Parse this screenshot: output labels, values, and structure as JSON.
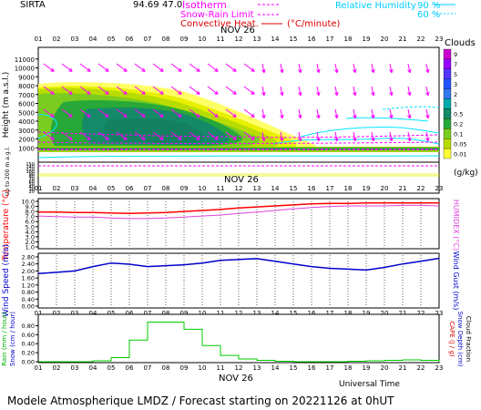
{
  "header": {
    "site": "SIRTA",
    "number": "94.69",
    "coords_partial": "47.0",
    "legend_rh_label": "Relative Humidity",
    "legend_rh_values": [
      "90 %",
      "60 %"
    ],
    "legend_isotherm": "Isotherm",
    "legend_snow_rain": "Snow-Rain Limit",
    "legend_convective": "Convective Heat.",
    "legend_convective_unit": "(°C/minute)"
  },
  "colors": {
    "magenta": "#ff00ff",
    "cyan": "#00e5ff",
    "cloud_light_yellow": "#ffff66",
    "cloud_yellow": "#e8f000",
    "cloud_olive": "#b8dc00",
    "cloud_lightgreen": "#7acc20",
    "cloud_green": "#28a838",
    "cloud_darkgreen": "#148a68",
    "temperature": "#ff0000",
    "humidex": "#dd44dd",
    "wind": "#0000cc",
    "rain": "#00cc00"
  },
  "hours": [
    "01",
    "02",
    "03",
    "04",
    "05",
    "06",
    "07",
    "08",
    "09",
    "10",
    "11",
    "12",
    "13",
    "14",
    "15",
    "16",
    "17",
    "18",
    "19",
    "20",
    "21",
    "22",
    "23"
  ],
  "date_label": "NOV 26",
  "footer": "Modele Atmospherique LMDZ / Forecast starting on 20221126 at 0hUT",
  "universal_time": "Universal Time",
  "chart_data": [
    {
      "type": "heatmap",
      "title": "Clouds",
      "ylabel": "Height (m a.s.l.)",
      "yticks": [
        1000,
        2000,
        3000,
        4000,
        5000,
        6000,
        7000,
        8000,
        9000,
        10000,
        11000
      ],
      "ytick_labels": [
        "1000",
        "2000",
        "3000",
        "4000",
        "5000",
        "6000",
        "7000",
        "8000",
        "9000",
        "10000",
        "11000"
      ],
      "ylim": [
        0,
        12000
      ],
      "low_ylabel": "Up to 200 m a.g.l.",
      "low_yticks": [
        20,
        30,
        40,
        50,
        60,
        70,
        80,
        90,
        100,
        120,
        140,
        150
      ],
      "colorbar_labels": [
        "9",
        "7",
        "5",
        "3",
        "2",
        "1",
        "0.5",
        "0.2",
        "0.1",
        "0.05",
        "0.01"
      ],
      "colorbar_unit": "(g/kg)"
    },
    {
      "type": "line",
      "ylabel": "Temperature (°C)",
      "right_label": "HUMIDEX (°C)",
      "yticks": [
        "1.0",
        "2.0",
        "3.0",
        "4.0",
        "5.0",
        "6.0",
        "7.0",
        "8.0",
        "9.0",
        "10.0"
      ],
      "ylim": [
        1.0,
        10.0
      ],
      "series": [
        {
          "name": "Temperature",
          "values": [
            7.9,
            7.9,
            7.8,
            7.8,
            7.7,
            7.6,
            7.7,
            7.8,
            8.0,
            8.2,
            8.4,
            8.7,
            8.9,
            9.1,
            9.3,
            9.5,
            9.6,
            9.6,
            9.7,
            9.7,
            9.7,
            9.7,
            9.7
          ]
        },
        {
          "name": "Humidex",
          "values": [
            7.1,
            7.0,
            6.9,
            6.9,
            6.7,
            6.6,
            6.6,
            6.7,
            6.9,
            7.1,
            7.3,
            7.6,
            7.9,
            8.2,
            8.5,
            8.8,
            9.0,
            9.1,
            9.1,
            9.1,
            9.2,
            9.2,
            9.1
          ]
        }
      ]
    },
    {
      "type": "line",
      "ylabel": "Wind Speed (m/s)",
      "right_label": "Wind Gust (m/s)",
      "yticks": [
        "0.00",
        "0.20",
        "0.40",
        "0.60",
        "0.80",
        "1.00",
        "1.20",
        "1.40",
        "1.60",
        "1.80",
        "2.00",
        "2.20",
        "2.40",
        "2.60",
        "2.80"
      ],
      "ylim": [
        0,
        2.9
      ],
      "series": [
        {
          "name": "Wind Speed",
          "values": [
            1.85,
            1.92,
            2.0,
            2.25,
            2.45,
            2.38,
            2.25,
            2.3,
            2.35,
            2.45,
            2.6,
            2.65,
            2.7,
            2.55,
            2.4,
            2.25,
            2.15,
            2.1,
            2.05,
            2.2,
            2.4,
            2.55,
            2.72
          ]
        }
      ]
    },
    {
      "type": "bar",
      "ylabel_rain": "Rain (mm / hour)",
      "ylabel_snow": "Snow (cm / hour)",
      "right_labels": [
        "CAPE (J / g)",
        "Snow Depth (cm)",
        "Cloud Fraction"
      ],
      "yticks": [
        "0.00",
        "0.20",
        "0.40",
        "0.60",
        "0.80"
      ],
      "ylim": [
        0,
        0.95
      ],
      "values": [
        0,
        0,
        0,
        0.02,
        0.09,
        0.48,
        0.88,
        0.88,
        0.72,
        0.36,
        0.14,
        0.06,
        0.03,
        0.01,
        0,
        0,
        0,
        0.01,
        0.02,
        0.03,
        0.04,
        0.03,
        0.02
      ],
      "xlabel": "Universal Time"
    }
  ]
}
